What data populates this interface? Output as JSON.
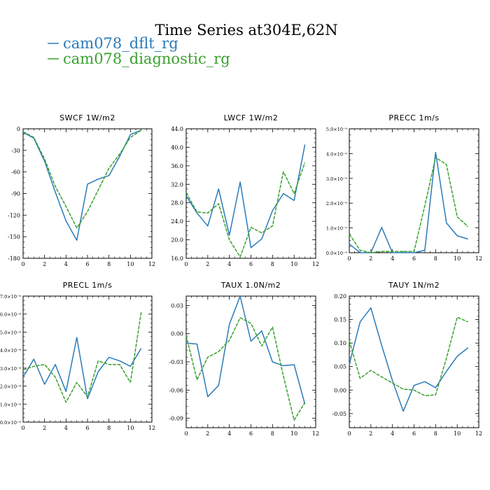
{
  "title": "Time Series at304E,62N",
  "legend": [
    {
      "label": "cam078_dflt_rg",
      "color": "#2b7bb9"
    },
    {
      "label": "cam078_diagnostic_rg",
      "color": "#3aa02f"
    }
  ],
  "chart_data": [
    {
      "type": "line",
      "title": "SWCF    1W/m2",
      "x": [
        0,
        1,
        2,
        3,
        4,
        5,
        6,
        7,
        8,
        9,
        10,
        11
      ],
      "xlim": [
        0,
        12
      ],
      "ylim": [
        -180,
        0
      ],
      "xticks": [
        0,
        2,
        4,
        6,
        8,
        10,
        12
      ],
      "yticks": [
        {
          "value": 0,
          "label": "0"
        },
        {
          "value": -30,
          "label": "-30"
        },
        {
          "value": -60,
          "label": "-60"
        },
        {
          "value": -90,
          "label": "-90"
        },
        {
          "value": -120,
          "label": "-120"
        },
        {
          "value": -150,
          "label": "-150"
        },
        {
          "value": -180,
          "label": "-180"
        }
      ],
      "series": [
        {
          "name": "cam078_dflt_rg",
          "values": [
            -5,
            -13,
            -45,
            -88,
            -128,
            -155,
            -77,
            -70,
            -65,
            -38,
            -8,
            -2
          ]
        },
        {
          "name": "cam078_diagnostic_rg",
          "values": [
            -4,
            -12,
            -42,
            -80,
            -108,
            -138,
            -115,
            -85,
            -55,
            -35,
            -12,
            -2
          ]
        }
      ]
    },
    {
      "type": "line",
      "title": "LWCF    1W/m2",
      "x": [
        0,
        1,
        2,
        3,
        4,
        5,
        6,
        7,
        8,
        9,
        10,
        11
      ],
      "xlim": [
        0,
        12
      ],
      "ylim": [
        16,
        44
      ],
      "xticks": [
        0,
        2,
        4,
        6,
        8,
        10,
        12
      ],
      "yticks": [
        {
          "value": 16,
          "label": "16.0"
        },
        {
          "value": 20,
          "label": "20.0"
        },
        {
          "value": 24,
          "label": "24.0"
        },
        {
          "value": 28,
          "label": "28.0"
        },
        {
          "value": 32,
          "label": "32.0"
        },
        {
          "value": 36,
          "label": "36.0"
        },
        {
          "value": 40,
          "label": "40.0"
        },
        {
          "value": 44,
          "label": "44.0"
        }
      ],
      "series": [
        {
          "name": "cam078_dflt_rg",
          "values": [
            29.5,
            25.8,
            23.0,
            31.0,
            21.0,
            32.5,
            18.3,
            20.2,
            26.3,
            30.0,
            28.5,
            40.6
          ]
        },
        {
          "name": "cam078_diagnostic_rg",
          "values": [
            30.2,
            26.0,
            25.8,
            27.8,
            20.0,
            16.3,
            22.7,
            21.5,
            23.0,
            34.7,
            30.0,
            36.7
          ]
        }
      ]
    },
    {
      "type": "line",
      "title": "PRECC    1m/s",
      "x": [
        0,
        1,
        2,
        3,
        4,
        5,
        6,
        7,
        8,
        9,
        10,
        11
      ],
      "xlim": [
        0,
        12
      ],
      "ylim": [
        0,
        5e-09
      ],
      "xticks": [
        0,
        2,
        4,
        6,
        8,
        10,
        12
      ],
      "yticks": [
        {
          "value": 0,
          "label": "0.0×10⁻⁹"
        },
        {
          "value": 1e-09,
          "label": "1.0×10⁻⁹"
        },
        {
          "value": 2e-09,
          "label": "2.0×10⁻⁹"
        },
        {
          "value": 3e-09,
          "label": "3.0×10⁻⁹"
        },
        {
          "value": 4e-09,
          "label": "4.0×10⁻⁹"
        },
        {
          "value": 5e-09,
          "label": "5.0×10⁻⁹"
        }
      ],
      "series": [
        {
          "name": "cam078_dflt_rg",
          "values": [
            3.5e-10,
            0,
            0,
            1.02e-09,
            0,
            0,
            0,
            1e-10,
            4.05e-09,
            1.2e-09,
            6.8e-10,
            5.5e-10
          ]
        },
        {
          "name": "cam078_diagnostic_rg",
          "values": [
            7.5e-10,
            1e-10,
            0,
            5e-11,
            5e-11,
            5e-11,
            5e-11,
            1.9e-09,
            3.85e-09,
            3.55e-09,
            1.45e-09,
            1.05e-09
          ]
        }
      ]
    },
    {
      "type": "line",
      "title": "PRECL    1m/s",
      "x": [
        0,
        1,
        2,
        3,
        4,
        5,
        6,
        7,
        8,
        9,
        10,
        11
      ],
      "xlim": [
        0,
        12
      ],
      "ylim": [
        0,
        7e-08
      ],
      "xticks": [
        0,
        2,
        4,
        6,
        8,
        10,
        12
      ],
      "yticks": [
        {
          "value": 0,
          "label": "0.0×10⁻⁸"
        },
        {
          "value": 1e-08,
          "label": "1.0×10⁻⁸"
        },
        {
          "value": 2e-08,
          "label": "2.0×10⁻⁸"
        },
        {
          "value": 3e-08,
          "label": "3.0×10⁻⁸"
        },
        {
          "value": 4e-08,
          "label": "4.0×10⁻⁸"
        },
        {
          "value": 5e-08,
          "label": "5.0×10⁻⁸"
        },
        {
          "value": 6e-08,
          "label": "6.0×10⁻⁸"
        },
        {
          "value": 7e-08,
          "label": "7.0×10⁻⁸"
        }
      ],
      "series": [
        {
          "name": "cam078_dflt_rg",
          "values": [
            2.5e-08,
            3.5e-08,
            2.1e-08,
            3.2e-08,
            1.7e-08,
            4.7e-08,
            1.3e-08,
            2.8e-08,
            3.6e-08,
            3.4e-08,
            3.1e-08,
            4.1e-08
          ]
        },
        {
          "name": "cam078_diagnostic_rg",
          "values": [
            2.9e-08,
            3.1e-08,
            3.2e-08,
            2.5e-08,
            1.1e-08,
            2.2e-08,
            1.4e-08,
            3.4e-08,
            3.2e-08,
            3.2e-08,
            2.2e-08,
            6.1e-08
          ]
        }
      ]
    },
    {
      "type": "line",
      "title": "TAUX    1.0N/m2",
      "x": [
        0,
        1,
        2,
        3,
        4,
        5,
        6,
        7,
        8,
        9,
        10,
        11
      ],
      "xlim": [
        0,
        12
      ],
      "ylim": [
        -0.1,
        0.04
      ],
      "xticks": [
        0,
        2,
        4,
        6,
        8,
        10,
        12
      ],
      "yticks": [
        {
          "value": 0.03,
          "label": "0.03"
        },
        {
          "value": 0.0,
          "label": "0.00"
        },
        {
          "value": -0.03,
          "label": "-0.03"
        },
        {
          "value": -0.06,
          "label": "-0.06"
        },
        {
          "value": -0.09,
          "label": "-0.09"
        }
      ],
      "series": [
        {
          "name": "cam078_dflt_rg",
          "values": [
            -0.01,
            -0.011,
            -0.067,
            -0.055,
            0.01,
            0.04,
            -0.008,
            0.003,
            -0.03,
            -0.034,
            -0.033,
            -0.075
          ]
        },
        {
          "name": "cam078_diagnostic_rg",
          "values": [
            -0.002,
            -0.049,
            -0.025,
            -0.019,
            -0.007,
            0.017,
            0.011,
            -0.013,
            0.007,
            -0.045,
            -0.092,
            -0.073
          ]
        }
      ]
    },
    {
      "type": "line",
      "title": "TAUY    1N/m2",
      "x": [
        0,
        1,
        2,
        3,
        4,
        5,
        6,
        7,
        8,
        9,
        10,
        11
      ],
      "xlim": [
        0,
        12
      ],
      "ylim": [
        -0.08,
        0.2
      ],
      "xticks": [
        0,
        2,
        4,
        6,
        8,
        10,
        12
      ],
      "yticks": [
        {
          "value": 0.2,
          "label": "0.20"
        },
        {
          "value": 0.15,
          "label": "0.15"
        },
        {
          "value": 0.1,
          "label": "0.10"
        },
        {
          "value": 0.05,
          "label": "0.05"
        },
        {
          "value": 0.0,
          "label": "0.00"
        },
        {
          "value": -0.05,
          "label": "-0.05"
        }
      ],
      "series": [
        {
          "name": "cam078_dflt_rg",
          "values": [
            0.055,
            0.145,
            0.175,
            0.095,
            0.02,
            -0.045,
            0.01,
            0.018,
            0.005,
            0.04,
            0.072,
            0.09
          ]
        },
        {
          "name": "cam078_diagnostic_rg",
          "values": [
            0.105,
            0.025,
            0.042,
            0.028,
            0.015,
            0.002,
            0.0,
            -0.012,
            -0.01,
            0.068,
            0.155,
            0.145
          ]
        }
      ]
    }
  ]
}
